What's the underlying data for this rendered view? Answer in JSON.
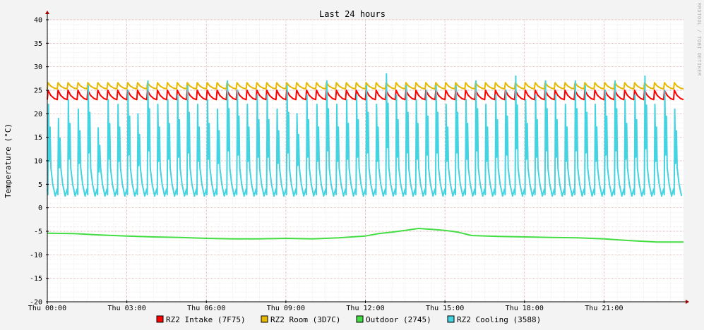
{
  "chart_data": {
    "type": "line",
    "title": "Last 24 hours",
    "xlabel": "",
    "ylabel": "Temperature (°C)",
    "watermark": "RRDTOOL / TOBI OETIKER",
    "ylim": [
      -20,
      40
    ],
    "yticks": [
      40,
      35,
      30,
      25,
      20,
      15,
      10,
      5,
      0,
      -5,
      -10,
      -15,
      -20
    ],
    "xlim": [
      0,
      24
    ],
    "x_tick_hours": [
      0,
      3,
      6,
      9,
      12,
      15,
      18,
      21
    ],
    "x_tick_labels": [
      "Thu 00:00",
      "Thu 03:00",
      "Thu 06:00",
      "Thu 09:00",
      "Thu 12:00",
      "Thu 15:00",
      "Thu 18:00",
      "Thu 21:00"
    ],
    "grid": true,
    "legend_position": "bottom",
    "series": [
      {
        "name": "RZ2 Intake (7F75)",
        "color": "#ff0000",
        "pattern": "sawtooth",
        "period_hours": 0.375,
        "min": 23.0,
        "max": 25.0
      },
      {
        "name": "RZ2 Room (3D7C)",
        "color": "#e6b800",
        "pattern": "sawtooth",
        "period_hours": 0.375,
        "min": 25.3,
        "max": 26.6
      },
      {
        "name": "Outdoor (2745)",
        "color": "#44dd44",
        "pattern": "points",
        "x": [
          0,
          1,
          2,
          3,
          4,
          5,
          6,
          7,
          8,
          9,
          10,
          11,
          12,
          12.5,
          13,
          13.5,
          14,
          14.5,
          15,
          15.5,
          16,
          17,
          18,
          19,
          20,
          21,
          22,
          23,
          24
        ],
        "values": [
          -5.4,
          -5.5,
          -5.8,
          -6.0,
          -6.2,
          -6.3,
          -6.5,
          -6.6,
          -6.6,
          -6.5,
          -6.6,
          -6.4,
          -6.0,
          -5.5,
          -5.2,
          -4.8,
          -4.4,
          -4.6,
          -4.8,
          -5.2,
          -5.9,
          -6.1,
          -6.2,
          -6.3,
          -6.4,
          -6.6,
          -7.0,
          -7.3,
          -7.3
        ]
      },
      {
        "name": "RZ2 Cooling (3588)",
        "color": "#44d3e0",
        "pattern": "spikes",
        "period_hours": 0.375,
        "min": 2.5,
        "max": 29.0,
        "peaks": [
          22,
          19,
          23,
          21,
          26,
          17,
          23,
          22,
          25,
          20,
          27,
          22,
          23,
          24,
          26,
          22,
          23,
          21,
          27,
          25,
          22,
          24,
          24,
          21,
          26,
          20,
          24,
          22,
          27,
          22,
          23,
          24,
          26,
          22,
          28.5,
          24,
          26,
          23,
          25,
          26,
          22,
          26,
          23,
          27,
          22,
          24,
          25,
          28,
          23,
          24,
          27,
          24,
          22,
          27,
          26,
          22,
          25,
          27,
          23,
          24,
          28,
          22,
          25,
          21
        ]
      }
    ]
  }
}
